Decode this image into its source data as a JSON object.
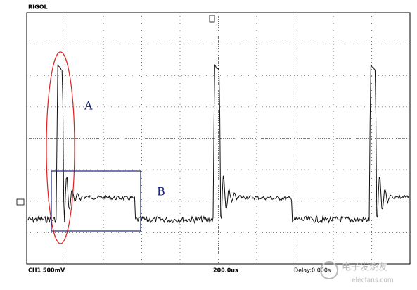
{
  "header": {
    "brand": "RIGOL"
  },
  "annotations": {
    "a": "A",
    "b": "B"
  },
  "footer": {
    "channel": "CH1 500mV",
    "timebase": "200.0us",
    "delay": "Delay:0.000s"
  },
  "watermark": {
    "name": "电子发烧友",
    "site": "elecfans.com"
  }
}
